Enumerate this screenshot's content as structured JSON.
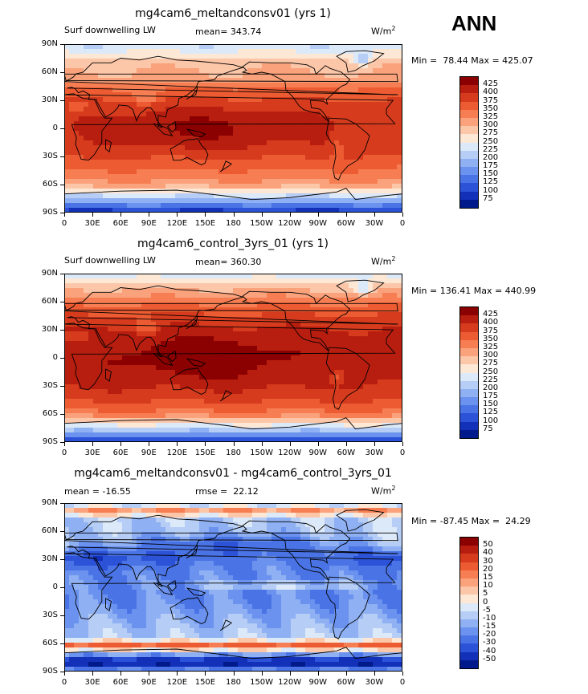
{
  "season": "ANN",
  "units": "W/m",
  "units_sup": "2",
  "lon_ticks": [
    "0",
    "30E",
    "60E",
    "90E",
    "120E",
    "150E",
    "180",
    "150W",
    "120W",
    "90W",
    "60W",
    "30W",
    "0"
  ],
  "lat_ticks": [
    "90N",
    "60N",
    "30N",
    "0",
    "30S",
    "60S",
    "90S"
  ],
  "chart_data": [
    {
      "type": "heatmap",
      "title": "mg4cam6_meltandconsv01 (yrs 1)",
      "left_label": "Surf downwelling LW",
      "center_label": "mean= 343.74",
      "min_max": "Min =  78.44 Max = 425.07",
      "xlim": [
        0,
        360
      ],
      "ylim": [
        -90,
        90
      ],
      "colorbar_levels": [
        "425",
        "400",
        "375",
        "350",
        "325",
        "300",
        "275",
        "250",
        "225",
        "200",
        "175",
        "150",
        "125",
        "100",
        "75"
      ],
      "colorbar_colors": [
        "#8b0000",
        "#b81e0f",
        "#d63b1e",
        "#ec5b32",
        "#f77e52",
        "#f9a27c",
        "#fcc6a8",
        "#fde7d5",
        "#dce9f8",
        "#b6cdf5",
        "#8fb0f2",
        "#6a92ee",
        "#4a74e6",
        "#2c52d8",
        "#1231b8",
        "#001a8c"
      ],
      "field": "lw_exp"
    },
    {
      "type": "heatmap",
      "title": "mg4cam6_control_3yrs_01 (yrs 1)",
      "left_label": "Surf downwelling LW",
      "center_label": "mean= 360.30",
      "min_max": "Min = 136.41 Max = 440.99",
      "xlim": [
        0,
        360
      ],
      "ylim": [
        -90,
        90
      ],
      "colorbar_levels": [
        "425",
        "400",
        "375",
        "350",
        "325",
        "300",
        "275",
        "250",
        "225",
        "200",
        "175",
        "150",
        "125",
        "100",
        "75"
      ],
      "colorbar_colors": [
        "#8b0000",
        "#b81e0f",
        "#d63b1e",
        "#ec5b32",
        "#f77e52",
        "#f9a27c",
        "#fcc6a8",
        "#fde7d5",
        "#dce9f8",
        "#b6cdf5",
        "#8fb0f2",
        "#6a92ee",
        "#4a74e6",
        "#2c52d8",
        "#1231b8",
        "#001a8c"
      ],
      "field": "lw_ctl"
    },
    {
      "type": "heatmap",
      "title": "mg4cam6_meltandconsv01 - mg4cam6_control_3yrs_01",
      "left_label": "mean = -16.55",
      "center_label": "rmse =  22.12",
      "min_max": "Min = -87.45 Max =  24.29",
      "xlim": [
        0,
        360
      ],
      "ylim": [
        -90,
        90
      ],
      "colorbar_levels": [
        "50",
        "40",
        "30",
        "20",
        "15",
        "10",
        "5",
        "0",
        "-5",
        "-10",
        "-15",
        "-20",
        "-30",
        "-40",
        "-50"
      ],
      "colorbar_colors": [
        "#8b0000",
        "#b81e0f",
        "#d63b1e",
        "#ec5b32",
        "#f77e52",
        "#f9a27c",
        "#fcc6a8",
        "#fde7d5",
        "#dce9f8",
        "#b6cdf5",
        "#8fb0f2",
        "#6a92ee",
        "#4a74e6",
        "#2c52d8",
        "#1231b8",
        "#001a8c"
      ],
      "field": "lw_diff"
    }
  ]
}
